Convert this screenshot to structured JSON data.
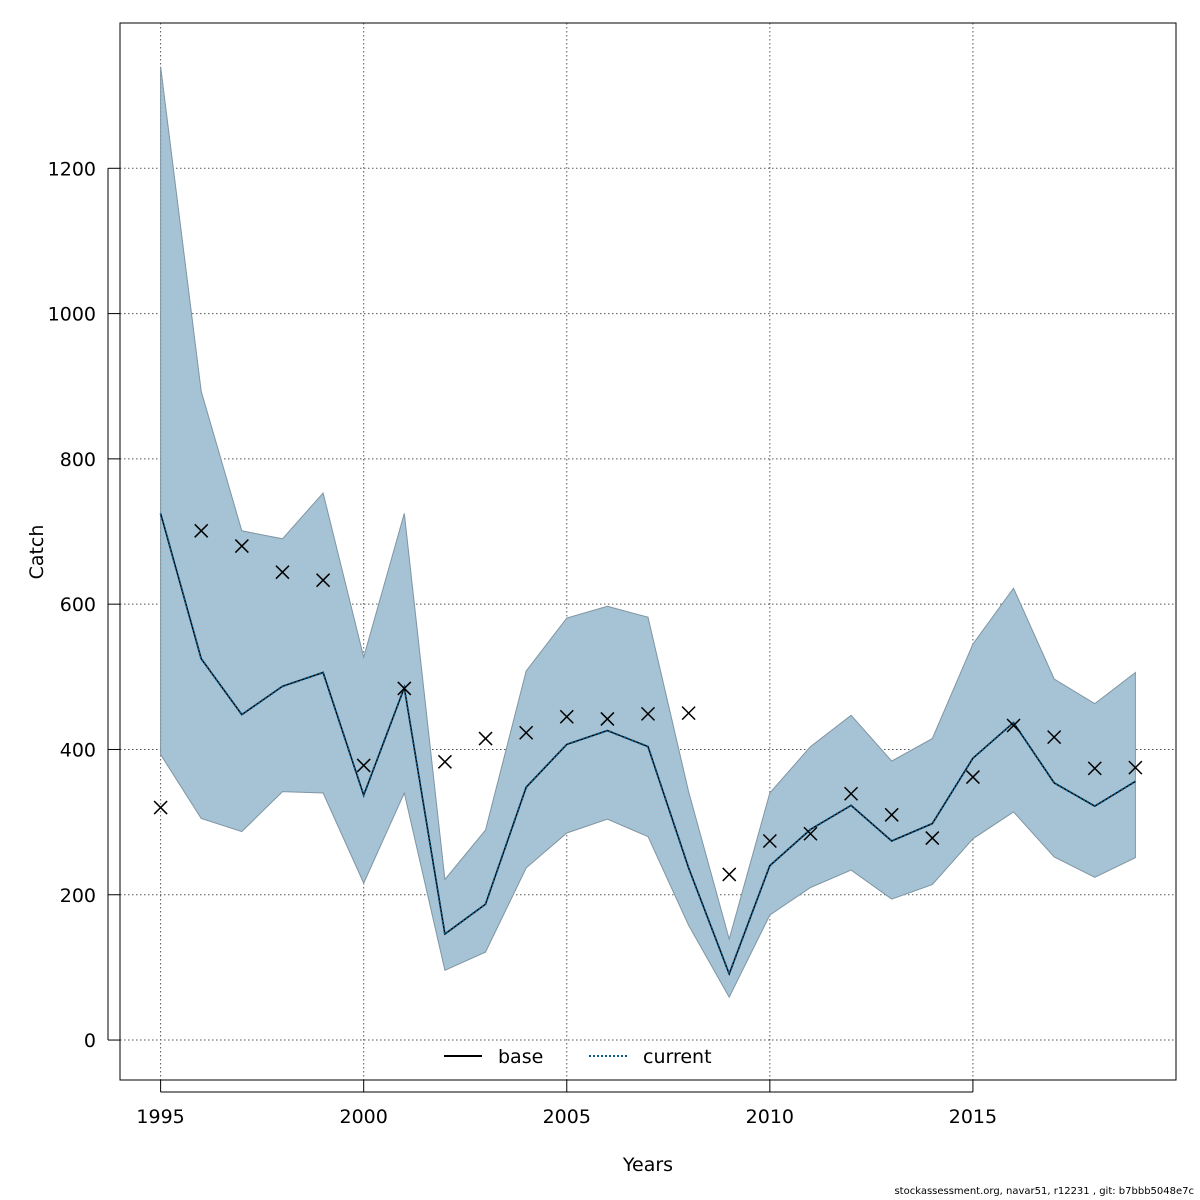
{
  "footer_text": "stockassessment.org, navar51, r12231 , git: b7bbb5048e7c",
  "chart_data": {
    "type": "line",
    "title": "",
    "xlabel": "Years",
    "ylabel": "Catch",
    "xlim": [
      1994,
      2020
    ],
    "ylim": [
      -55,
      1400
    ],
    "xticks": [
      1995,
      2000,
      2005,
      2010,
      2015
    ],
    "yticks": [
      0,
      200,
      400,
      600,
      800,
      1000,
      1200
    ],
    "grid": true,
    "legend_position": "bottom-center",
    "x": [
      1995,
      1996,
      1997,
      1998,
      1999,
      2000,
      2001,
      2002,
      2003,
      2004,
      2005,
      2006,
      2007,
      2008,
      2009,
      2010,
      2011,
      2012,
      2013,
      2014,
      2015,
      2016,
      2017,
      2018,
      2019
    ],
    "series": [
      {
        "name": "base",
        "style": "solid",
        "color": "#000000",
        "values": [
          725,
          525,
          448,
          487,
          506,
          337,
          485,
          146,
          187,
          348,
          407,
          426,
          404,
          237,
          91,
          240,
          290,
          323,
          274,
          298,
          388,
          437,
          354,
          322,
          356
        ]
      },
      {
        "name": "current",
        "style": "dotted",
        "color": "#0b5a8a",
        "values": [
          725,
          525,
          448,
          487,
          506,
          337,
          485,
          146,
          187,
          348,
          407,
          426,
          404,
          237,
          91,
          240,
          290,
          323,
          274,
          298,
          388,
          437,
          354,
          322,
          356
        ]
      }
    ],
    "confidence_band": {
      "color": "#a5c3d4",
      "upper": [
        1340,
        893,
        701,
        690,
        753,
        527,
        725,
        221,
        289,
        508,
        581,
        597,
        582,
        342,
        139,
        340,
        404,
        447,
        384,
        415,
        545,
        622,
        497,
        463,
        506
      ],
      "lower": [
        393,
        305,
        287,
        342,
        340,
        216,
        340,
        96,
        121,
        237,
        285,
        304,
        280,
        158,
        59,
        172,
        210,
        234,
        194,
        214,
        277,
        314,
        252,
        224,
        251
      ]
    },
    "observed": {
      "marker": "x",
      "values": [
        320,
        701,
        680,
        644,
        633,
        378,
        484,
        383,
        415,
        423,
        445,
        442,
        449,
        450,
        228,
        274,
        284,
        339,
        310,
        278,
        362,
        433,
        417,
        374,
        375
      ]
    }
  }
}
